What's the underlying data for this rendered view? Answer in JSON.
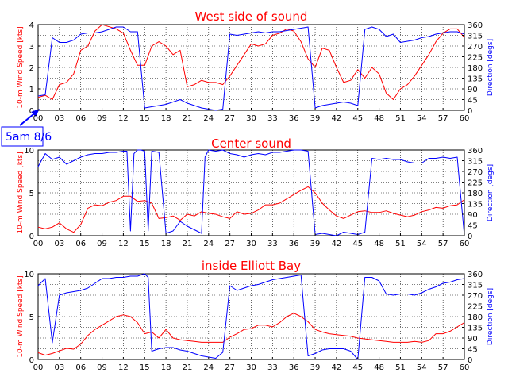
{
  "colors": {
    "speed": "#ff0000",
    "direction": "#0000ff",
    "title": "#ff0000",
    "annotation": "#0000ff"
  },
  "annotation": {
    "text": "5am 8/6",
    "arrow_to_x": 0
  },
  "chart_data": [
    {
      "type": "line",
      "title": "West side of sound",
      "ylabel": "10-m Wind Speed [kts]",
      "y2label": "Direction [degs]",
      "xlim": [
        0,
        60
      ],
      "ylim": [
        0,
        4
      ],
      "y2lim": [
        0,
        360
      ],
      "xticks": [
        "00",
        "03",
        "06",
        "09",
        "12",
        "15",
        "18",
        "21",
        "24",
        "27",
        "30",
        "33",
        "36",
        "39",
        "42",
        "45",
        "48",
        "51",
        "54",
        "57",
        "60"
      ],
      "yticks": [
        "0",
        "1",
        "2",
        "3",
        "4"
      ],
      "y2ticks": [
        "0",
        "45",
        "90",
        "135",
        "180",
        "225",
        "270",
        "315",
        "360"
      ],
      "grid": true,
      "series": [
        {
          "axis": "left",
          "color": "#ff0000",
          "x": [
            0,
            1,
            2,
            3,
            4,
            5,
            6,
            7,
            8,
            9,
            10,
            11,
            12,
            13,
            14,
            15,
            16,
            17,
            18,
            19,
            20,
            21,
            22,
            23,
            24,
            25,
            26,
            27,
            28,
            29,
            30,
            31,
            32,
            33,
            34,
            35,
            36,
            37,
            38,
            39,
            40,
            41,
            42,
            43,
            44,
            45,
            46,
            47,
            48,
            49,
            50,
            51,
            52,
            53,
            54,
            55,
            56,
            57,
            58,
            59,
            60
          ],
          "y": [
            0.6,
            0.7,
            0.5,
            1.2,
            1.3,
            1.7,
            2.8,
            3.0,
            3.7,
            4.0,
            3.9,
            3.8,
            3.6,
            2.8,
            2.1,
            2.1,
            3.0,
            3.2,
            3.0,
            2.6,
            2.8,
            1.1,
            1.2,
            1.4,
            1.3,
            1.3,
            1.2,
            1.6,
            2.1,
            2.6,
            3.1,
            3.0,
            3.1,
            3.5,
            3.6,
            3.8,
            3.7,
            3.2,
            2.4,
            2.0,
            2.9,
            2.8,
            2.0,
            1.3,
            1.4,
            1.9,
            1.5,
            2.0,
            1.7,
            0.8,
            0.5,
            1.0,
            1.2,
            1.6,
            2.1,
            2.6,
            3.2,
            3.6,
            3.8,
            3.8,
            3.4
          ]
        },
        {
          "axis": "right",
          "color": "#0000ff",
          "x": [
            0,
            1,
            2,
            3,
            4,
            5,
            6,
            7,
            8,
            9,
            10,
            11,
            12,
            13,
            14,
            15,
            16,
            17,
            18,
            19,
            20,
            21,
            22,
            23,
            24,
            25,
            26,
            27,
            28,
            29,
            30,
            31,
            32,
            33,
            34,
            35,
            36,
            37,
            38,
            39,
            40,
            41,
            42,
            43,
            44,
            45,
            46,
            47,
            48,
            49,
            50,
            51,
            52,
            53,
            54,
            55,
            56,
            57,
            58,
            59,
            60
          ],
          "y": [
            60,
            65,
            305,
            285,
            285,
            295,
            320,
            325,
            325,
            330,
            340,
            350,
            350,
            330,
            330,
            10,
            15,
            20,
            25,
            35,
            45,
            30,
            20,
            10,
            5,
            0,
            5,
            320,
            315,
            320,
            325,
            330,
            325,
            330,
            330,
            335,
            340,
            345,
            350,
            10,
            20,
            25,
            30,
            35,
            30,
            20,
            340,
            350,
            340,
            310,
            320,
            285,
            290,
            295,
            305,
            310,
            320,
            325,
            330,
            330,
            320
          ]
        }
      ]
    },
    {
      "type": "line",
      "title": "Center sound",
      "ylabel": "10-m Wind Speed [kts]",
      "y2label": "Direction [degs]",
      "xlim": [
        0,
        60
      ],
      "ylim": [
        0,
        10
      ],
      "y2lim": [
        0,
        360
      ],
      "xticks": [
        "00",
        "03",
        "06",
        "09",
        "12",
        "15",
        "18",
        "21",
        "24",
        "27",
        "30",
        "33",
        "36",
        "39",
        "42",
        "45",
        "48",
        "51",
        "54",
        "57",
        "60"
      ],
      "yticks": [
        "0",
        "5",
        "10"
      ],
      "y2ticks": [
        "0",
        "45",
        "90",
        "135",
        "180",
        "225",
        "270",
        "315",
        "360"
      ],
      "grid": true,
      "series": [
        {
          "axis": "left",
          "color": "#ff0000",
          "x": [
            0,
            1,
            2,
            3,
            4,
            5,
            6,
            7,
            8,
            9,
            10,
            11,
            12,
            13,
            14,
            15,
            16,
            17,
            18,
            19,
            20,
            21,
            22,
            23,
            24,
            25,
            26,
            27,
            28,
            29,
            30,
            31,
            32,
            33,
            34,
            35,
            36,
            37,
            38,
            39,
            40,
            41,
            42,
            43,
            44,
            45,
            46,
            47,
            48,
            49,
            50,
            51,
            52,
            53,
            54,
            55,
            56,
            57,
            58,
            59,
            60
          ],
          "y": [
            1.0,
            0.8,
            1.0,
            1.5,
            0.8,
            0.4,
            1.3,
            3.2,
            3.6,
            3.5,
            3.9,
            4.1,
            4.6,
            4.6,
            4.0,
            4.1,
            3.8,
            2.0,
            2.1,
            2.3,
            1.8,
            2.5,
            2.3,
            2.8,
            2.6,
            2.5,
            2.2,
            2.0,
            2.8,
            2.5,
            2.6,
            3.0,
            3.6,
            3.6,
            3.8,
            4.3,
            4.8,
            5.3,
            5.7,
            5.0,
            3.8,
            3.0,
            2.3,
            2.0,
            2.4,
            2.8,
            2.9,
            2.7,
            2.7,
            2.9,
            2.6,
            2.4,
            2.2,
            2.4,
            2.8,
            3.0,
            3.3,
            3.2,
            3.5,
            3.6,
            4.2
          ]
        },
        {
          "axis": "right",
          "color": "#0000ff",
          "x": [
            0,
            1,
            2,
            3,
            4,
            5,
            6,
            7,
            8,
            9,
            10,
            11,
            12,
            12.5,
            13,
            13.5,
            14,
            14.5,
            15,
            15.5,
            16,
            17,
            18,
            19,
            20,
            21,
            22,
            23,
            23.5,
            24,
            25,
            26,
            27,
            28,
            29,
            30,
            31,
            32,
            33,
            34,
            35,
            36,
            37,
            38,
            39,
            40,
            41,
            42,
            43,
            44,
            45,
            46,
            47,
            48,
            49,
            50,
            51,
            52,
            53,
            54,
            55,
            56,
            57,
            58,
            59,
            60
          ],
          "y": [
            290,
            345,
            320,
            330,
            300,
            315,
            330,
            340,
            345,
            345,
            350,
            350,
            355,
            355,
            20,
            345,
            360,
            360,
            355,
            20,
            355,
            350,
            10,
            20,
            60,
            40,
            25,
            10,
            330,
            360,
            355,
            360,
            345,
            340,
            330,
            340,
            345,
            340,
            350,
            350,
            355,
            360,
            360,
            355,
            5,
            10,
            5,
            0,
            15,
            10,
            5,
            15,
            325,
            320,
            325,
            320,
            320,
            310,
            305,
            305,
            325,
            325,
            330,
            325,
            330,
            0
          ]
        }
      ]
    },
    {
      "type": "line",
      "title": "inside Elliott Bay",
      "ylabel": "10-m Wind Speed [kts]",
      "y2label": "Direction [degs]",
      "xlim": [
        0,
        60
      ],
      "ylim": [
        0,
        10
      ],
      "y2lim": [
        0,
        360
      ],
      "xticks": [
        "00",
        "03",
        "06",
        "09",
        "12",
        "15",
        "18",
        "21",
        "24",
        "27",
        "30",
        "33",
        "36",
        "39",
        "42",
        "45",
        "48",
        "51",
        "54",
        "57",
        "60"
      ],
      "yticks": [
        "0",
        "5",
        "10"
      ],
      "y2ticks": [
        "0",
        "45",
        "90",
        "135",
        "180",
        "225",
        "270",
        "315",
        "360"
      ],
      "grid": true,
      "series": [
        {
          "axis": "left",
          "color": "#ff0000",
          "x": [
            0,
            1,
            2,
            3,
            4,
            5,
            6,
            7,
            8,
            9,
            10,
            11,
            12,
            13,
            14,
            15,
            16,
            17,
            18,
            19,
            20,
            21,
            22,
            23,
            24,
            25,
            26,
            27,
            28,
            29,
            30,
            31,
            32,
            33,
            34,
            35,
            36,
            37,
            38,
            39,
            40,
            41,
            42,
            43,
            44,
            45,
            46,
            47,
            48,
            49,
            50,
            51,
            52,
            53,
            54,
            55,
            56,
            57,
            58,
            59,
            60
          ],
          "y": [
            0.8,
            0.5,
            0.7,
            1.0,
            1.3,
            1.2,
            1.8,
            2.8,
            3.5,
            4.0,
            4.5,
            5.0,
            5.2,
            5.0,
            4.3,
            3.0,
            3.2,
            2.5,
            3.5,
            2.5,
            2.3,
            2.2,
            2.1,
            2.0,
            2.0,
            2.0,
            2.0,
            2.6,
            3.0,
            3.5,
            3.6,
            4.0,
            4.0,
            3.8,
            4.3,
            5.0,
            5.4,
            5.0,
            4.4,
            3.5,
            3.2,
            3.0,
            2.9,
            2.8,
            2.7,
            2.5,
            2.4,
            2.3,
            2.2,
            2.1,
            2.0,
            2.0,
            2.0,
            2.1,
            2.0,
            2.2,
            3.0,
            3.0,
            3.3,
            3.8,
            4.3
          ]
        },
        {
          "axis": "right",
          "color": "#0000ff",
          "x": [
            0,
            1,
            2,
            3,
            4,
            5,
            6,
            7,
            8,
            9,
            10,
            11,
            12,
            13,
            14,
            15,
            15.5,
            16,
            17,
            18,
            19,
            20,
            21,
            22,
            23,
            24,
            25,
            26,
            27,
            28,
            29,
            30,
            31,
            32,
            33,
            34,
            35,
            36,
            37,
            38,
            39,
            40,
            41,
            42,
            43,
            44,
            45,
            46,
            47,
            48,
            49,
            50,
            51,
            52,
            53,
            54,
            55,
            56,
            57,
            58,
            59,
            60
          ],
          "y": [
            310,
            340,
            70,
            270,
            280,
            285,
            290,
            300,
            320,
            340,
            340,
            345,
            345,
            350,
            350,
            360,
            345,
            35,
            45,
            50,
            50,
            40,
            35,
            25,
            15,
            10,
            5,
            30,
            310,
            290,
            300,
            310,
            315,
            325,
            335,
            340,
            345,
            350,
            355,
            15,
            25,
            40,
            45,
            45,
            45,
            35,
            0,
            345,
            345,
            330,
            275,
            270,
            275,
            275,
            270,
            280,
            295,
            305,
            320,
            325,
            335,
            340
          ]
        }
      ]
    }
  ]
}
